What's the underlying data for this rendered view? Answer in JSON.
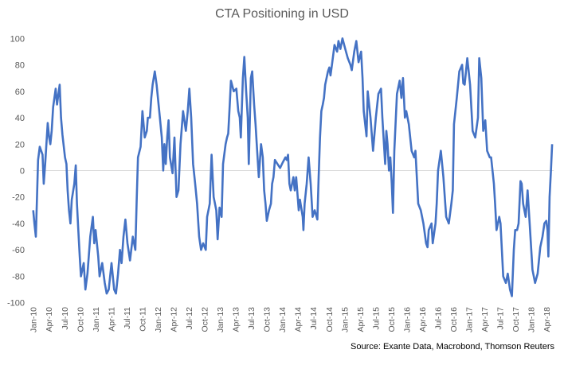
{
  "chart_data": {
    "type": "line",
    "title": "CTA Positioning in USD",
    "source": "Source: Exante Data, Macrobond, Thomson Reuters",
    "xlabel": "",
    "ylabel": "",
    "ylim": [
      -100,
      100
    ],
    "yticks": [
      100,
      80,
      60,
      40,
      20,
      0,
      -20,
      -40,
      -60,
      -80,
      -100
    ],
    "xticks": [
      "Jan-10",
      "Apr-10",
      "Jul-10",
      "Oct-10",
      "Jan-11",
      "Apr-11",
      "Jul-11",
      "Oct-11",
      "Jan-12",
      "Apr-12",
      "Jul-12",
      "Oct-12",
      "Jan-13",
      "Apr-13",
      "Jul-13",
      "Oct-13",
      "Jan-14",
      "Apr-14",
      "Jul-14",
      "Oct-14",
      "Jan-15",
      "Apr-15",
      "Jul-15",
      "Oct-15",
      "Jan-16",
      "Apr-16",
      "Jul-16",
      "Oct-16",
      "Jan-17",
      "Apr-17",
      "Jul-17",
      "Oct-17",
      "Jan-18",
      "Apr-18"
    ],
    "xlim": [
      "2010-01-01",
      "2018-05-03"
    ],
    "grid": false,
    "zero_line": true,
    "legend": "none",
    "line_color": "#4472C4",
    "series": [
      {
        "points": [
          [
            "2010-01-01",
            -30
          ],
          [
            "2010-01-08",
            -40
          ],
          [
            "2010-01-16",
            -50
          ],
          [
            "2010-01-24",
            -15
          ],
          [
            "2010-01-29",
            8
          ],
          [
            "2010-02-09",
            18
          ],
          [
            "2010-02-25",
            12
          ],
          [
            "2010-03-02",
            -10
          ],
          [
            "2010-03-10",
            5
          ],
          [
            "2010-03-25",
            36
          ],
          [
            "2010-04-03",
            25
          ],
          [
            "2010-04-10",
            20
          ],
          [
            "2010-04-18",
            30
          ],
          [
            "2010-04-26",
            48
          ],
          [
            "2010-05-11",
            62
          ],
          [
            "2010-05-19",
            50
          ],
          [
            "2010-06-04",
            65
          ],
          [
            "2010-06-12",
            40
          ],
          [
            "2010-06-20",
            27
          ],
          [
            "2010-07-05",
            10
          ],
          [
            "2010-07-13",
            5
          ],
          [
            "2010-07-20",
            -15
          ],
          [
            "2010-07-28",
            -30
          ],
          [
            "2010-08-06",
            -40
          ],
          [
            "2010-08-14",
            -22
          ],
          [
            "2010-08-29",
            -10
          ],
          [
            "2010-09-07",
            4
          ],
          [
            "2010-09-14",
            -25
          ],
          [
            "2010-09-22",
            -45
          ],
          [
            "2010-09-30",
            -65
          ],
          [
            "2010-10-07",
            -80
          ],
          [
            "2010-10-23",
            -70
          ],
          [
            "2010-11-03",
            -90
          ],
          [
            "2010-11-15",
            -78
          ],
          [
            "2010-12-01",
            -50
          ],
          [
            "2010-12-16",
            -35
          ],
          [
            "2010-12-24",
            -55
          ],
          [
            "2011-01-02",
            -45
          ],
          [
            "2011-01-17",
            -65
          ],
          [
            "2011-01-25",
            -80
          ],
          [
            "2011-02-10",
            -70
          ],
          [
            "2011-02-25",
            -85
          ],
          [
            "2011-03-06",
            -93
          ],
          [
            "2011-03-18",
            -90
          ],
          [
            "2011-04-04",
            -70
          ],
          [
            "2011-04-19",
            -90
          ],
          [
            "2011-04-30",
            -93
          ],
          [
            "2011-05-12",
            -78
          ],
          [
            "2011-05-23",
            -60
          ],
          [
            "2011-06-02",
            -70
          ],
          [
            "2011-06-13",
            -50
          ],
          [
            "2011-06-24",
            -37
          ],
          [
            "2011-07-06",
            -55
          ],
          [
            "2011-07-21",
            -68
          ],
          [
            "2011-08-07",
            -50
          ],
          [
            "2011-08-22",
            -60
          ],
          [
            "2011-08-30",
            -20
          ],
          [
            "2011-09-07",
            10
          ],
          [
            "2011-09-22",
            18
          ],
          [
            "2011-10-03",
            45
          ],
          [
            "2011-10-16",
            25
          ],
          [
            "2011-10-28",
            30
          ],
          [
            "2011-11-04",
            40
          ],
          [
            "2011-11-16",
            40
          ],
          [
            "2011-11-24",
            55
          ],
          [
            "2011-12-02",
            65
          ],
          [
            "2011-12-14",
            75
          ],
          [
            "2011-12-25",
            65
          ],
          [
            "2012-01-10",
            45
          ],
          [
            "2012-01-25",
            25
          ],
          [
            "2012-02-03",
            0
          ],
          [
            "2012-02-10",
            20
          ],
          [
            "2012-02-18",
            5
          ],
          [
            "2012-02-26",
            25
          ],
          [
            "2012-03-04",
            38
          ],
          [
            "2012-03-12",
            10
          ],
          [
            "2012-03-27",
            -2
          ],
          [
            "2012-04-08",
            25
          ],
          [
            "2012-04-20",
            -20
          ],
          [
            "2012-05-01",
            -15
          ],
          [
            "2012-05-13",
            20
          ],
          [
            "2012-05-28",
            45
          ],
          [
            "2012-06-14",
            30
          ],
          [
            "2012-06-25",
            45
          ],
          [
            "2012-07-04",
            62
          ],
          [
            "2012-07-15",
            40
          ],
          [
            "2012-07-26",
            5
          ],
          [
            "2012-08-08",
            -10
          ],
          [
            "2012-08-19",
            -25
          ],
          [
            "2012-09-01",
            -50
          ],
          [
            "2012-09-12",
            -60
          ],
          [
            "2012-09-24",
            -55
          ],
          [
            "2012-10-09",
            -60
          ],
          [
            "2012-10-17",
            -35
          ],
          [
            "2012-11-02",
            -25
          ],
          [
            "2012-11-13",
            12
          ],
          [
            "2012-11-25",
            -20
          ],
          [
            "2012-12-10",
            -30
          ],
          [
            "2012-12-18",
            -52
          ],
          [
            "2012-12-29",
            -28
          ],
          [
            "2013-01-11",
            -35
          ],
          [
            "2013-01-19",
            5
          ],
          [
            "2013-02-04",
            20
          ],
          [
            "2013-02-12",
            25
          ],
          [
            "2013-02-19",
            28
          ],
          [
            "2013-02-26",
            45
          ],
          [
            "2013-03-05",
            68
          ],
          [
            "2013-03-21",
            60
          ],
          [
            "2013-04-06",
            62
          ],
          [
            "2013-04-17",
            45
          ],
          [
            "2013-04-26",
            40
          ],
          [
            "2013-05-02",
            25
          ],
          [
            "2013-05-14",
            70
          ],
          [
            "2013-05-22",
            86
          ],
          [
            "2013-06-03",
            60
          ],
          [
            "2013-06-12",
            40
          ],
          [
            "2013-06-18",
            5
          ],
          [
            "2013-06-30",
            70
          ],
          [
            "2013-07-08",
            75
          ],
          [
            "2013-07-19",
            50
          ],
          [
            "2013-07-27",
            35
          ],
          [
            "2013-08-04",
            20
          ],
          [
            "2013-08-16",
            -5
          ],
          [
            "2013-08-29",
            20
          ],
          [
            "2013-09-09",
            10
          ],
          [
            "2013-09-17",
            -15
          ],
          [
            "2013-09-25",
            -25
          ],
          [
            "2013-10-02",
            -38
          ],
          [
            "2013-10-15",
            -30
          ],
          [
            "2013-10-26",
            -25
          ],
          [
            "2013-11-03",
            -10
          ],
          [
            "2013-11-11",
            -5
          ],
          [
            "2013-11-19",
            8
          ],
          [
            "2013-12-04",
            5
          ],
          [
            "2013-12-19",
            2
          ],
          [
            "2014-01-04",
            6
          ],
          [
            "2014-01-20",
            10
          ],
          [
            "2014-01-28",
            8
          ],
          [
            "2014-02-05",
            12
          ],
          [
            "2014-02-13",
            -10
          ],
          [
            "2014-02-21",
            -15
          ],
          [
            "2014-03-06",
            -5
          ],
          [
            "2014-03-14",
            -15
          ],
          [
            "2014-03-22",
            -5
          ],
          [
            "2014-04-07",
            -30
          ],
          [
            "2014-04-14",
            -22
          ],
          [
            "2014-04-30",
            -35
          ],
          [
            "2014-05-04",
            -45
          ],
          [
            "2014-05-11",
            -25
          ],
          [
            "2014-05-23",
            -10
          ],
          [
            "2014-06-04",
            10
          ],
          [
            "2014-06-16",
            -10
          ],
          [
            "2014-06-27",
            -35
          ],
          [
            "2014-07-09",
            -30
          ],
          [
            "2014-07-25",
            -37
          ],
          [
            "2014-08-02",
            -5
          ],
          [
            "2014-08-10",
            25
          ],
          [
            "2014-08-18",
            45
          ],
          [
            "2014-08-26",
            50
          ],
          [
            "2014-09-03",
            55
          ],
          [
            "2014-09-10",
            65
          ],
          [
            "2014-09-26",
            75
          ],
          [
            "2014-10-04",
            78
          ],
          [
            "2014-10-11",
            72
          ],
          [
            "2014-10-19",
            80
          ],
          [
            "2014-11-04",
            95
          ],
          [
            "2014-11-19",
            90
          ],
          [
            "2014-11-27",
            98
          ],
          [
            "2014-12-08",
            92
          ],
          [
            "2014-12-20",
            100
          ],
          [
            "2015-01-06",
            92
          ],
          [
            "2015-01-21",
            85
          ],
          [
            "2015-02-06",
            80
          ],
          [
            "2015-02-14",
            76
          ],
          [
            "2015-02-28",
            90
          ],
          [
            "2015-03-10",
            98
          ],
          [
            "2015-03-23",
            82
          ],
          [
            "2015-04-08",
            90
          ],
          [
            "2015-04-16",
            70
          ],
          [
            "2015-04-23",
            45
          ],
          [
            "2015-05-09",
            26
          ],
          [
            "2015-05-16",
            60
          ],
          [
            "2015-06-02",
            40
          ],
          [
            "2015-06-17",
            15
          ],
          [
            "2015-07-03",
            40
          ],
          [
            "2015-07-18",
            58
          ],
          [
            "2015-08-03",
            62
          ],
          [
            "2015-08-11",
            40
          ],
          [
            "2015-08-27",
            5
          ],
          [
            "2015-09-04",
            30
          ],
          [
            "2015-09-11",
            20
          ],
          [
            "2015-09-19",
            0
          ],
          [
            "2015-09-27",
            10
          ],
          [
            "2015-10-05",
            -10
          ],
          [
            "2015-10-12",
            -32
          ],
          [
            "2015-10-20",
            15
          ],
          [
            "2015-11-05",
            58
          ],
          [
            "2015-11-21",
            68
          ],
          [
            "2015-12-01",
            55
          ],
          [
            "2015-12-10",
            70
          ],
          [
            "2015-12-21",
            40
          ],
          [
            "2015-12-29",
            45
          ],
          [
            "2016-01-14",
            35
          ],
          [
            "2016-01-30",
            15
          ],
          [
            "2016-02-15",
            10
          ],
          [
            "2016-02-22",
            15
          ],
          [
            "2016-03-08",
            -25
          ],
          [
            "2016-03-23",
            -30
          ],
          [
            "2016-04-08",
            -40
          ],
          [
            "2016-04-24",
            -55
          ],
          [
            "2016-05-02",
            -58
          ],
          [
            "2016-05-09",
            -45
          ],
          [
            "2016-05-25",
            -40
          ],
          [
            "2016-06-02",
            -55
          ],
          [
            "2016-06-18",
            -40
          ],
          [
            "2016-06-25",
            -25
          ],
          [
            "2016-07-03",
            0
          ],
          [
            "2016-07-19",
            15
          ],
          [
            "2016-08-04",
            -5
          ],
          [
            "2016-08-20",
            -35
          ],
          [
            "2016-09-05",
            -40
          ],
          [
            "2016-09-20",
            -25
          ],
          [
            "2016-09-28",
            -15
          ],
          [
            "2016-10-05",
            35
          ],
          [
            "2016-10-21",
            55
          ],
          [
            "2016-11-06",
            75
          ],
          [
            "2016-11-22",
            80
          ],
          [
            "2016-11-29",
            66
          ],
          [
            "2016-12-07",
            65
          ],
          [
            "2016-12-22",
            85
          ],
          [
            "2017-01-08",
            65
          ],
          [
            "2017-01-23",
            30
          ],
          [
            "2017-02-08",
            25
          ],
          [
            "2017-02-24",
            40
          ],
          [
            "2017-03-01",
            85
          ],
          [
            "2017-03-13",
            70
          ],
          [
            "2017-03-24",
            30
          ],
          [
            "2017-04-06",
            38
          ],
          [
            "2017-04-17",
            15
          ],
          [
            "2017-05-02",
            10
          ],
          [
            "2017-05-10",
            10
          ],
          [
            "2017-05-26",
            -10
          ],
          [
            "2017-06-03",
            -25
          ],
          [
            "2017-06-11",
            -45
          ],
          [
            "2017-06-27",
            -35
          ],
          [
            "2017-07-04",
            -40
          ],
          [
            "2017-07-12",
            -60
          ],
          [
            "2017-07-20",
            -80
          ],
          [
            "2017-08-05",
            -85
          ],
          [
            "2017-08-16",
            -78
          ],
          [
            "2017-08-29",
            -90
          ],
          [
            "2017-09-10",
            -95
          ],
          [
            "2017-09-21",
            -60
          ],
          [
            "2017-09-29",
            -45
          ],
          [
            "2017-10-10",
            -45
          ],
          [
            "2017-10-19",
            -40
          ],
          [
            "2017-10-30",
            -8
          ],
          [
            "2017-11-07",
            -10
          ],
          [
            "2017-11-15",
            -25
          ],
          [
            "2017-11-30",
            -35
          ],
          [
            "2017-12-11",
            -15
          ],
          [
            "2017-12-23",
            -40
          ],
          [
            "2018-01-09",
            -75
          ],
          [
            "2018-01-24",
            -85
          ],
          [
            "2018-02-09",
            -78
          ],
          [
            "2018-02-24",
            -58
          ],
          [
            "2018-03-07",
            -50
          ],
          [
            "2018-03-18",
            -40
          ],
          [
            "2018-03-29",
            -38
          ],
          [
            "2018-04-06",
            -45
          ],
          [
            "2018-04-11",
            -65
          ],
          [
            "2018-04-18",
            -20
          ],
          [
            "2018-04-26",
            0
          ],
          [
            "2018-05-03",
            20
          ]
        ]
      }
    ]
  }
}
